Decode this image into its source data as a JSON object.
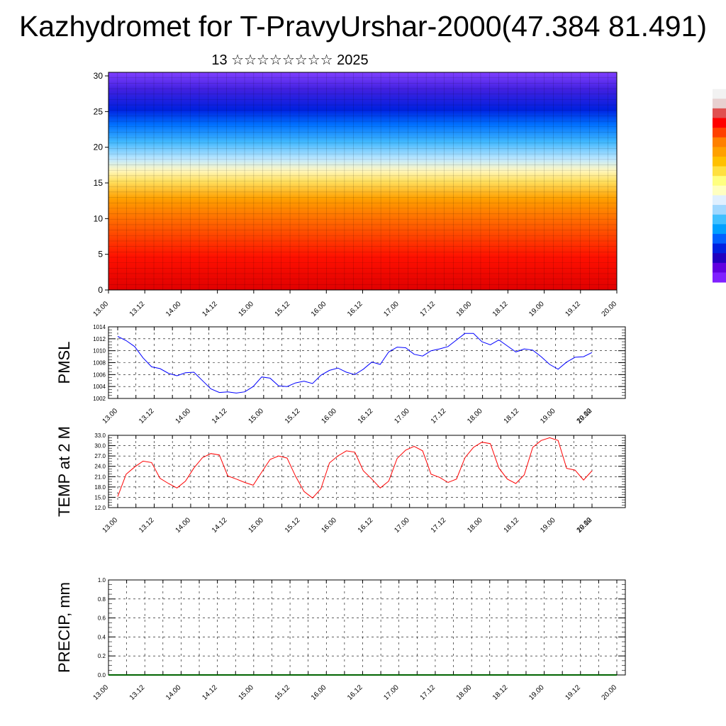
{
  "title": "Kazhydromet for T-PravyUrshar-2000(47.384 81.491)",
  "subtitle": "13 ☆☆☆☆☆☆☆☆ 2025",
  "colors": {
    "pmsl_line": "#0000ff",
    "temp_line": "#ff0000",
    "precip_line": "#006400"
  },
  "chart_data": [
    {
      "type": "heatmap",
      "panel": "cross-section",
      "x_ticks": [
        "13.00",
        "13.12",
        "14.00",
        "14.12",
        "15.00",
        "15.12",
        "16.00",
        "16.12",
        "17.00",
        "17.12",
        "18.00",
        "18.12",
        "19.00",
        "19.12",
        "20.00"
      ],
      "y_ticks": [
        "0",
        "5",
        "10",
        "15",
        "20",
        "25",
        "30"
      ],
      "ylim": [
        0,
        30.5
      ],
      "colorbar": [
        "#ffffff",
        "#f2f2f2",
        "#e8d0d0",
        "#e05050",
        "#ff0000",
        "#ff4000",
        "#ff8000",
        "#ffa000",
        "#ffc000",
        "#ffe040",
        "#ffff80",
        "#ffffc0",
        "#e0f0ff",
        "#a0d8ff",
        "#40c0ff",
        "#00a0ff",
        "#0060ff",
        "#0020e0",
        "#2000c0",
        "#6000e0",
        "#8020ff"
      ]
    },
    {
      "type": "line",
      "panel": "pmsl",
      "ylabel": "PMSL",
      "ylim": [
        1002,
        1014
      ],
      "y_ticks": [
        "1002",
        "1004",
        "1006",
        "1008",
        "1010",
        "1012",
        "1014"
      ],
      "x_ticks": [
        "13.00",
        "13.12",
        "14.00",
        "14.12",
        "15.00",
        "15.12",
        "16.00",
        "16.12",
        "17.00",
        "17.12",
        "18.00",
        "18.12",
        "19.00",
        "19.12",
        "20.00"
      ],
      "series": [
        {
          "values": [
            1012.4,
            1011.7,
            1010.7,
            1008.8,
            1007.3,
            1007.0,
            1006.2,
            1005.8,
            1006.3,
            1006.4,
            1005.0,
            1003.6,
            1003.0,
            1003.1,
            1002.9,
            1003.1,
            1004.0,
            1005.6,
            1005.4,
            1004.1,
            1004.0,
            1004.6,
            1004.9,
            1004.5,
            1005.9,
            1006.7,
            1007.1,
            1006.4,
            1006.0,
            1006.9,
            1008.1,
            1007.7,
            1009.8,
            1010.6,
            1010.5,
            1009.4,
            1009.1,
            1010.0,
            1010.3,
            1010.7,
            1011.8,
            1012.9,
            1012.9,
            1011.5,
            1011.0,
            1011.8,
            1010.8,
            1009.8,
            1010.3,
            1010.1,
            1009.0,
            1007.7,
            1006.9,
            1008.1,
            1008.9,
            1009.0,
            1009.7
          ]
        }
      ]
    },
    {
      "type": "line",
      "panel": "temp",
      "ylabel": "TEMP at 2 M",
      "ylim": [
        12,
        33
      ],
      "y_ticks": [
        "12.0",
        "15.0",
        "18.0",
        "21.0",
        "24.0",
        "27.0",
        "30.0",
        "33.0"
      ],
      "x_ticks": [
        "13.00",
        "13.12",
        "14.00",
        "14.12",
        "15.00",
        "15.12",
        "16.00",
        "16.12",
        "17.00",
        "17.12",
        "18.00",
        "18.12",
        "19.00",
        "19.12",
        "20.00"
      ],
      "series": [
        {
          "values": [
            15.2,
            21.7,
            23.8,
            25.5,
            25.1,
            20.5,
            19.0,
            17.7,
            19.7,
            23.5,
            26.5,
            27.7,
            27.3,
            21.2,
            20.3,
            19.3,
            18.5,
            22.3,
            26.0,
            27.0,
            26.4,
            21.1,
            16.7,
            14.8,
            17.5,
            25.0,
            27.0,
            28.5,
            28.1,
            22.7,
            20.3,
            17.7,
            19.7,
            26.3,
            28.7,
            29.8,
            28.5,
            21.7,
            20.8,
            19.3,
            20.3,
            26.5,
            29.5,
            31.0,
            30.6,
            23.5,
            20.3,
            19.0,
            21.5,
            29.5,
            31.5,
            32.3,
            31.5,
            23.4,
            22.9,
            20.0,
            22.7
          ]
        }
      ]
    },
    {
      "type": "line",
      "panel": "precip",
      "ylabel": "PRECIP, mm",
      "ylim": [
        0,
        1
      ],
      "y_ticks": [
        "0.0",
        "0.2",
        "0.4",
        "0.6",
        "0.8",
        "1.0"
      ],
      "x_ticks": [
        "13.00",
        "13.12",
        "14.00",
        "14.12",
        "15.00",
        "15.12",
        "16.00",
        "16.12",
        "17.00",
        "17.12",
        "18.00",
        "18.12",
        "19.00",
        "19.12",
        "20.00"
      ],
      "series": [
        {
          "values": [
            0,
            0,
            0,
            0,
            0,
            0,
            0,
            0,
            0,
            0,
            0,
            0,
            0,
            0,
            0,
            0,
            0,
            0,
            0,
            0,
            0,
            0,
            0,
            0,
            0,
            0,
            0,
            0,
            0,
            0,
            0,
            0,
            0,
            0,
            0,
            0,
            0,
            0,
            0,
            0,
            0,
            0,
            0,
            0,
            0,
            0,
            0,
            0,
            0,
            0,
            0,
            0,
            0,
            0,
            0,
            0,
            0
          ]
        }
      ]
    }
  ]
}
